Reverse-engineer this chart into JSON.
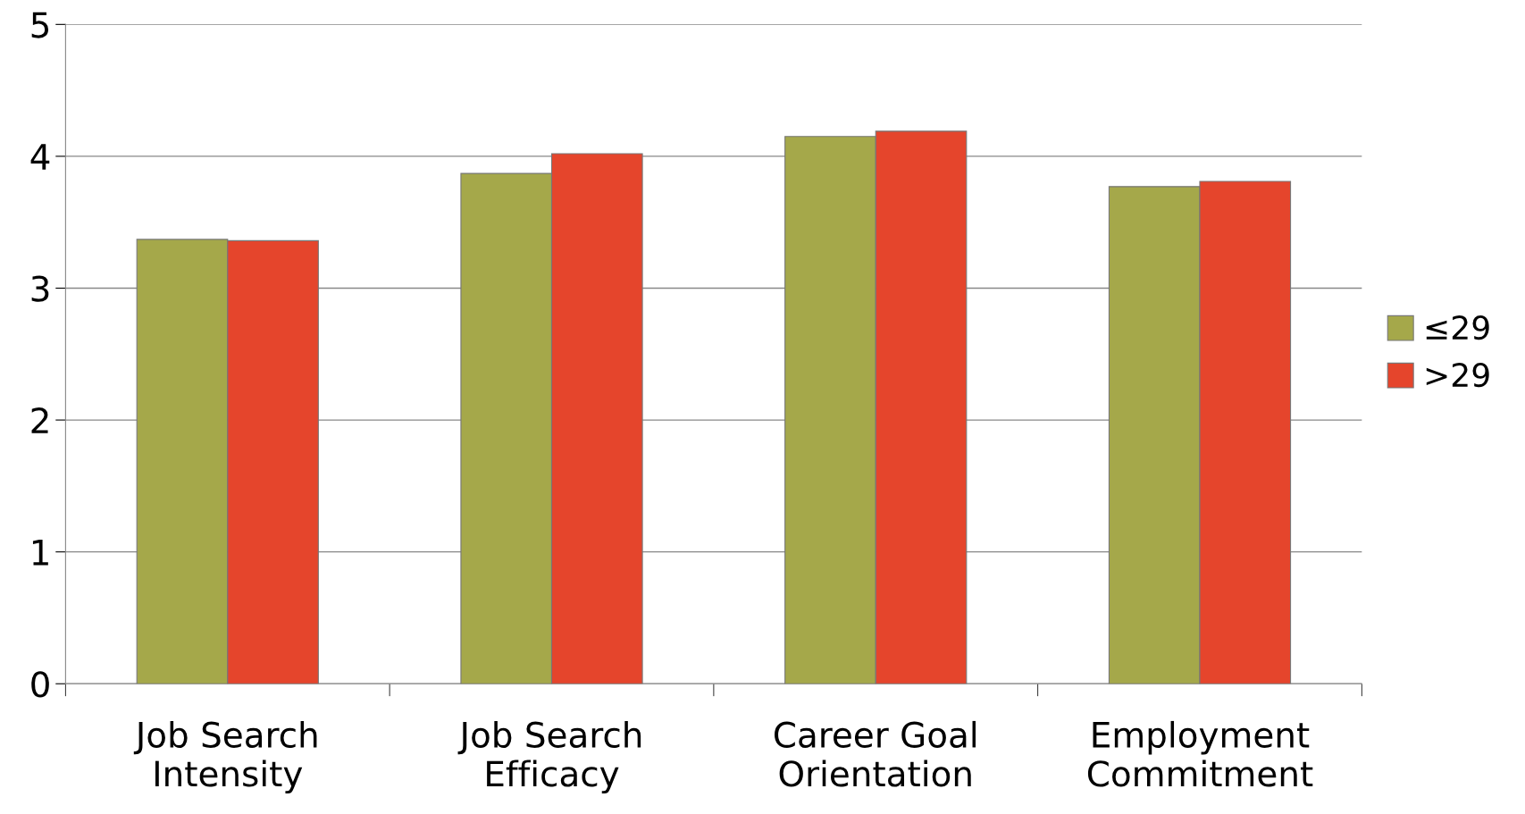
{
  "chart_data": {
    "type": "bar",
    "categories": [
      "Job Search\nIntensity",
      "Job Search\nEfficacy",
      "Career Goal\nOrientation",
      "Employment\nCommitment"
    ],
    "series": [
      {
        "name": "≤29",
        "color": "#a5a84a",
        "values": [
          3.37,
          3.87,
          4.15,
          3.77
        ]
      },
      {
        "name": ">29",
        "color": "#e5452c",
        "values": [
          3.36,
          4.02,
          4.19,
          3.81
        ]
      }
    ],
    "ylim": [
      0,
      5
    ],
    "yticks": [
      0,
      1,
      2,
      3,
      4,
      5
    ],
    "grid": "y",
    "legend": "right"
  }
}
